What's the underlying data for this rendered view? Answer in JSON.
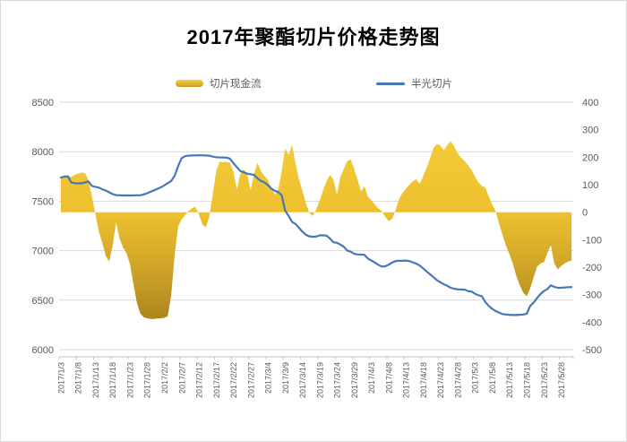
{
  "title": "2017年聚酯切片价格走势图",
  "legend": [
    {
      "label": "切片现金流",
      "type": "area"
    },
    {
      "label": "半光切片",
      "type": "line"
    }
  ],
  "colors": {
    "area_gradient": [
      "#F6D03C",
      "#EDC02F",
      "#C89D26",
      "#937518"
    ],
    "line": "#4678B8",
    "grid": "#D9D9D9",
    "axis_text": "#595959",
    "axis_line": "#BFBFBF",
    "title": "#000000",
    "frame": "#D9D9D9"
  },
  "chart_data": {
    "type": "combo",
    "title": "2017年聚酯切片价格走势图",
    "x_tick_interval_days": 5,
    "x_tick_labels": [
      "2017/1/3",
      "2017/1/8",
      "2017/1/13",
      "2017/1/18",
      "2017/1/23",
      "2017/1/28",
      "2017/2/2",
      "2017/2/7",
      "2017/2/12",
      "2017/2/17",
      "2017/2/22",
      "2017/2/27",
      "2017/3/4",
      "2017/3/9",
      "2017/3/14",
      "2017/3/19",
      "2017/3/24",
      "2017/3/29",
      "2017/4/3",
      "2017/4/8",
      "2017/4/13",
      "2017/4/18",
      "2017/4/23",
      "2017/4/28",
      "2017/5/3",
      "2017/5/8",
      "2017/5/13",
      "2017/5/18",
      "2017/5/23",
      "2017/5/28"
    ],
    "left_axis": {
      "min": 6000,
      "max": 8500,
      "step": 500,
      "ticks": [
        8500,
        8000,
        7500,
        7000,
        6500,
        6000
      ]
    },
    "right_axis": {
      "min": -500,
      "max": 400,
      "step": 100,
      "ticks": [
        400,
        300,
        200,
        100,
        0,
        -100,
        -200,
        -300,
        -400,
        -500
      ]
    },
    "grid": "horizontal-from-left-axis",
    "legend_position": "top",
    "series": [
      {
        "name": "切片现金流",
        "type": "area",
        "axis": "right",
        "baseline": 0,
        "values": [
          130,
          126,
          134,
          128,
          136,
          140,
          144,
          142,
          118,
          58,
          -5,
          -70,
          -112,
          -158,
          -180,
          -122,
          -38,
          -95,
          -128,
          -148,
          -188,
          -258,
          -328,
          -368,
          -382,
          -386,
          -388,
          -388,
          -387,
          -386,
          -384,
          -378,
          -300,
          -152,
          -52,
          -26,
          -12,
          4,
          14,
          20,
          -8,
          -44,
          -56,
          -18,
          62,
          148,
          184,
          182,
          183,
          180,
          148,
          84,
          138,
          156,
          138,
          80,
          140,
          180,
          150,
          130,
          118,
          90,
          64,
          82,
          148,
          232,
          208,
          244,
          178,
          120,
          78,
          34,
          -2,
          -14,
          10,
          42,
          80,
          112,
          136,
          118,
          64,
          128,
          158,
          186,
          192,
          158,
          118,
          76,
          94,
          56,
          44,
          28,
          14,
          4,
          -16,
          -33,
          -24,
          6,
          48,
          70,
          86,
          100,
          112,
          120,
          104,
          130,
          162,
          196,
          234,
          248,
          242,
          226,
          244,
          258,
          240,
          214,
          198,
          186,
          170,
          154,
          130,
          108,
          96,
          90,
          58,
          28,
          4,
          -42,
          -82,
          -122,
          -152,
          -188,
          -232,
          -266,
          -292,
          -306,
          -278,
          -238,
          -198,
          -186,
          -182,
          -148,
          -120,
          -186,
          -208,
          -196,
          -186,
          -180,
          -176
        ]
      },
      {
        "name": "半光切片",
        "type": "line",
        "axis": "left",
        "values": [
          7740,
          7748,
          7752,
          7690,
          7682,
          7680,
          7680,
          7688,
          7700,
          7655,
          7645,
          7638,
          7620,
          7608,
          7590,
          7572,
          7562,
          7560,
          7558,
          7558,
          7558,
          7558,
          7560,
          7560,
          7568,
          7580,
          7595,
          7610,
          7625,
          7640,
          7660,
          7682,
          7705,
          7760,
          7855,
          7935,
          7955,
          7960,
          7962,
          7963,
          7965,
          7963,
          7962,
          7960,
          7950,
          7945,
          7943,
          7942,
          7940,
          7930,
          7885,
          7845,
          7805,
          7792,
          7778,
          7772,
          7765,
          7730,
          7705,
          7690,
          7662,
          7628,
          7605,
          7592,
          7560,
          7405,
          7352,
          7292,
          7270,
          7232,
          7192,
          7162,
          7145,
          7140,
          7142,
          7155,
          7155,
          7152,
          7122,
          7085,
          7080,
          7062,
          7040,
          7002,
          6990,
          6968,
          6962,
          6960,
          6958,
          6920,
          6900,
          6880,
          6858,
          6840,
          6842,
          6858,
          6880,
          6895,
          6898,
          6898,
          6900,
          6895,
          6882,
          6870,
          6850,
          6822,
          6790,
          6762,
          6732,
          6702,
          6680,
          6660,
          6645,
          6625,
          6615,
          6610,
          6608,
          6607,
          6592,
          6588,
          6565,
          6550,
          6540,
          6482,
          6442,
          6412,
          6390,
          6375,
          6360,
          6355,
          6352,
          6350,
          6350,
          6352,
          6355,
          6362,
          6440,
          6475,
          6522,
          6562,
          6592,
          6612,
          6650,
          6635,
          6625,
          6625,
          6628,
          6630,
          6632
        ]
      }
    ]
  }
}
